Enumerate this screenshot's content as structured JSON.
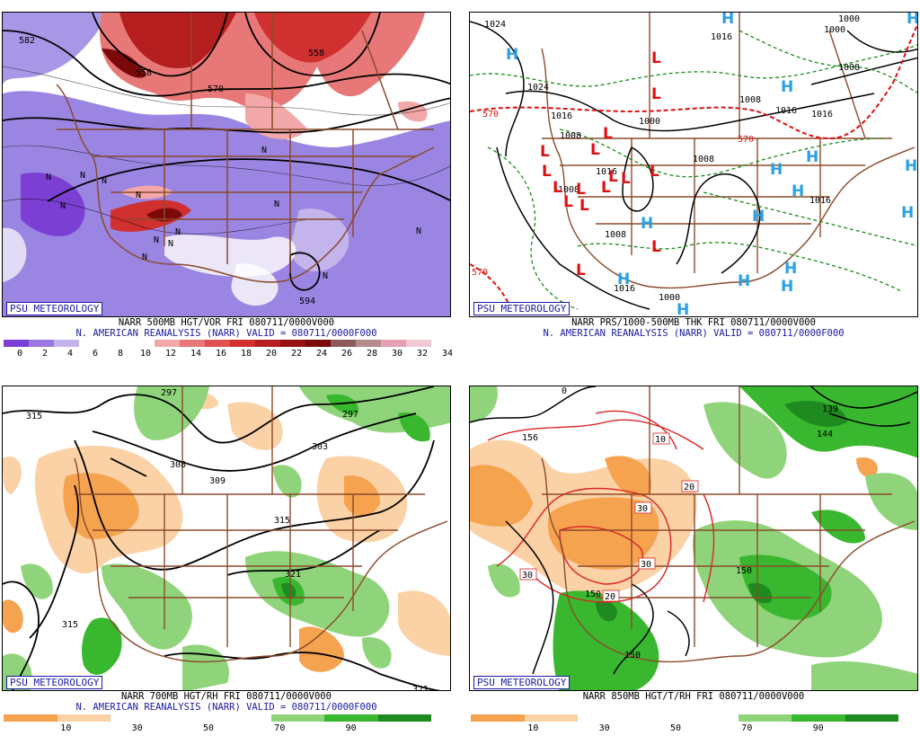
{
  "panels": [
    {
      "psu_label": "PSU METEOROLOGY",
      "title_line1": "NARR 500MB HGT/VOR FRI 080711/0000V000",
      "title_line2": "N. AMERICAN REANALYSIS (NARR) VALID = 080711/0000F000",
      "colorbar": {
        "colors": [
          "#7b3fd4",
          "#9a78e0",
          "#c3b4ec",
          "#ffffff",
          "#ffffff",
          "#ffffff",
          "#f2a8a8",
          "#e87878",
          "#e05050",
          "#d03030",
          "#b41e1e",
          "#961010",
          "#7a0a0a",
          "#8c5a5a",
          "#b48c8c",
          "#e6a0b4",
          "#f0c8d2"
        ],
        "ticks": [
          "0",
          "2",
          "4",
          "6",
          "8",
          "10",
          "12",
          "14",
          "16",
          "18",
          "20",
          "22",
          "24",
          "26",
          "28",
          "30",
          "32",
          "34"
        ]
      },
      "contour_labels": [
        "582",
        "558",
        "570",
        "558",
        "594"
      ],
      "markers": [
        "N",
        "N",
        "N",
        "N",
        "N",
        "N",
        "N",
        "N",
        "N",
        "N",
        "N",
        "N",
        "N"
      ]
    },
    {
      "psu_label": "PSU METEOROLOGY",
      "title_line1": "NARR PRS/1000-500MB THK FRI 080711/0000V000",
      "title_line2": "N. AMERICAN REANALYSIS (NARR) VALID = 080711/0000F000",
      "contour_labels": [
        "1024",
        "1016",
        "1000",
        "1024",
        "1016",
        "1008",
        "1000",
        "1008",
        "1016",
        "1000",
        "1008",
        "1016",
        "1008",
        "1016",
        "1016",
        "570",
        "570",
        "570",
        "1000",
        "1008",
        "1016",
        "1008"
      ],
      "highs": [
        "H",
        "H",
        "H",
        "H",
        "H",
        "H",
        "H",
        "H",
        "H",
        "H",
        "H",
        "H",
        "H",
        "H",
        "H",
        "H"
      ],
      "lows": [
        "L",
        "L",
        "L",
        "L",
        "L",
        "L",
        "L",
        "L",
        "L",
        "L",
        "L",
        "L",
        "L",
        "L",
        "L",
        "L"
      ]
    },
    {
      "psu_label": "PSU METEOROLOGY",
      "title_line1": "NARR 700MB HGT/RH FRI 080711/0000V000",
      "title_line2": "N. AMERICAN REANALYSIS (NARR) VALID = 080711/0000F000",
      "colorbar": {
        "colors": [
          "#f5a34f",
          "#fbd1a6",
          "#ffffff",
          "#ffffff",
          "#ffffff",
          "#8fd47a",
          "#39b82f",
          "#1f8a1f"
        ],
        "ticks": [
          "10",
          "30",
          "50",
          "70",
          "90"
        ]
      },
      "contour_labels": [
        "315",
        "297",
        "297",
        "303",
        "308",
        "309",
        "315",
        "321",
        "315",
        "321"
      ]
    },
    {
      "psu_label": "PSU METEOROLOGY",
      "title_line1": "NARR 850MB HGT/T/RH FRI 080711/0000V000",
      "colorbar": {
        "colors": [
          "#f5a34f",
          "#fbd1a6",
          "#ffffff",
          "#ffffff",
          "#ffffff",
          "#8fd47a",
          "#39b82f",
          "#1f8a1f"
        ],
        "ticks": [
          "10",
          "30",
          "50",
          "70",
          "90"
        ]
      },
      "contour_labels": [
        "156",
        "10",
        "20",
        "30",
        "30",
        "30",
        "20",
        "150",
        "150",
        "139",
        "144",
        "0",
        "150"
      ]
    }
  ]
}
